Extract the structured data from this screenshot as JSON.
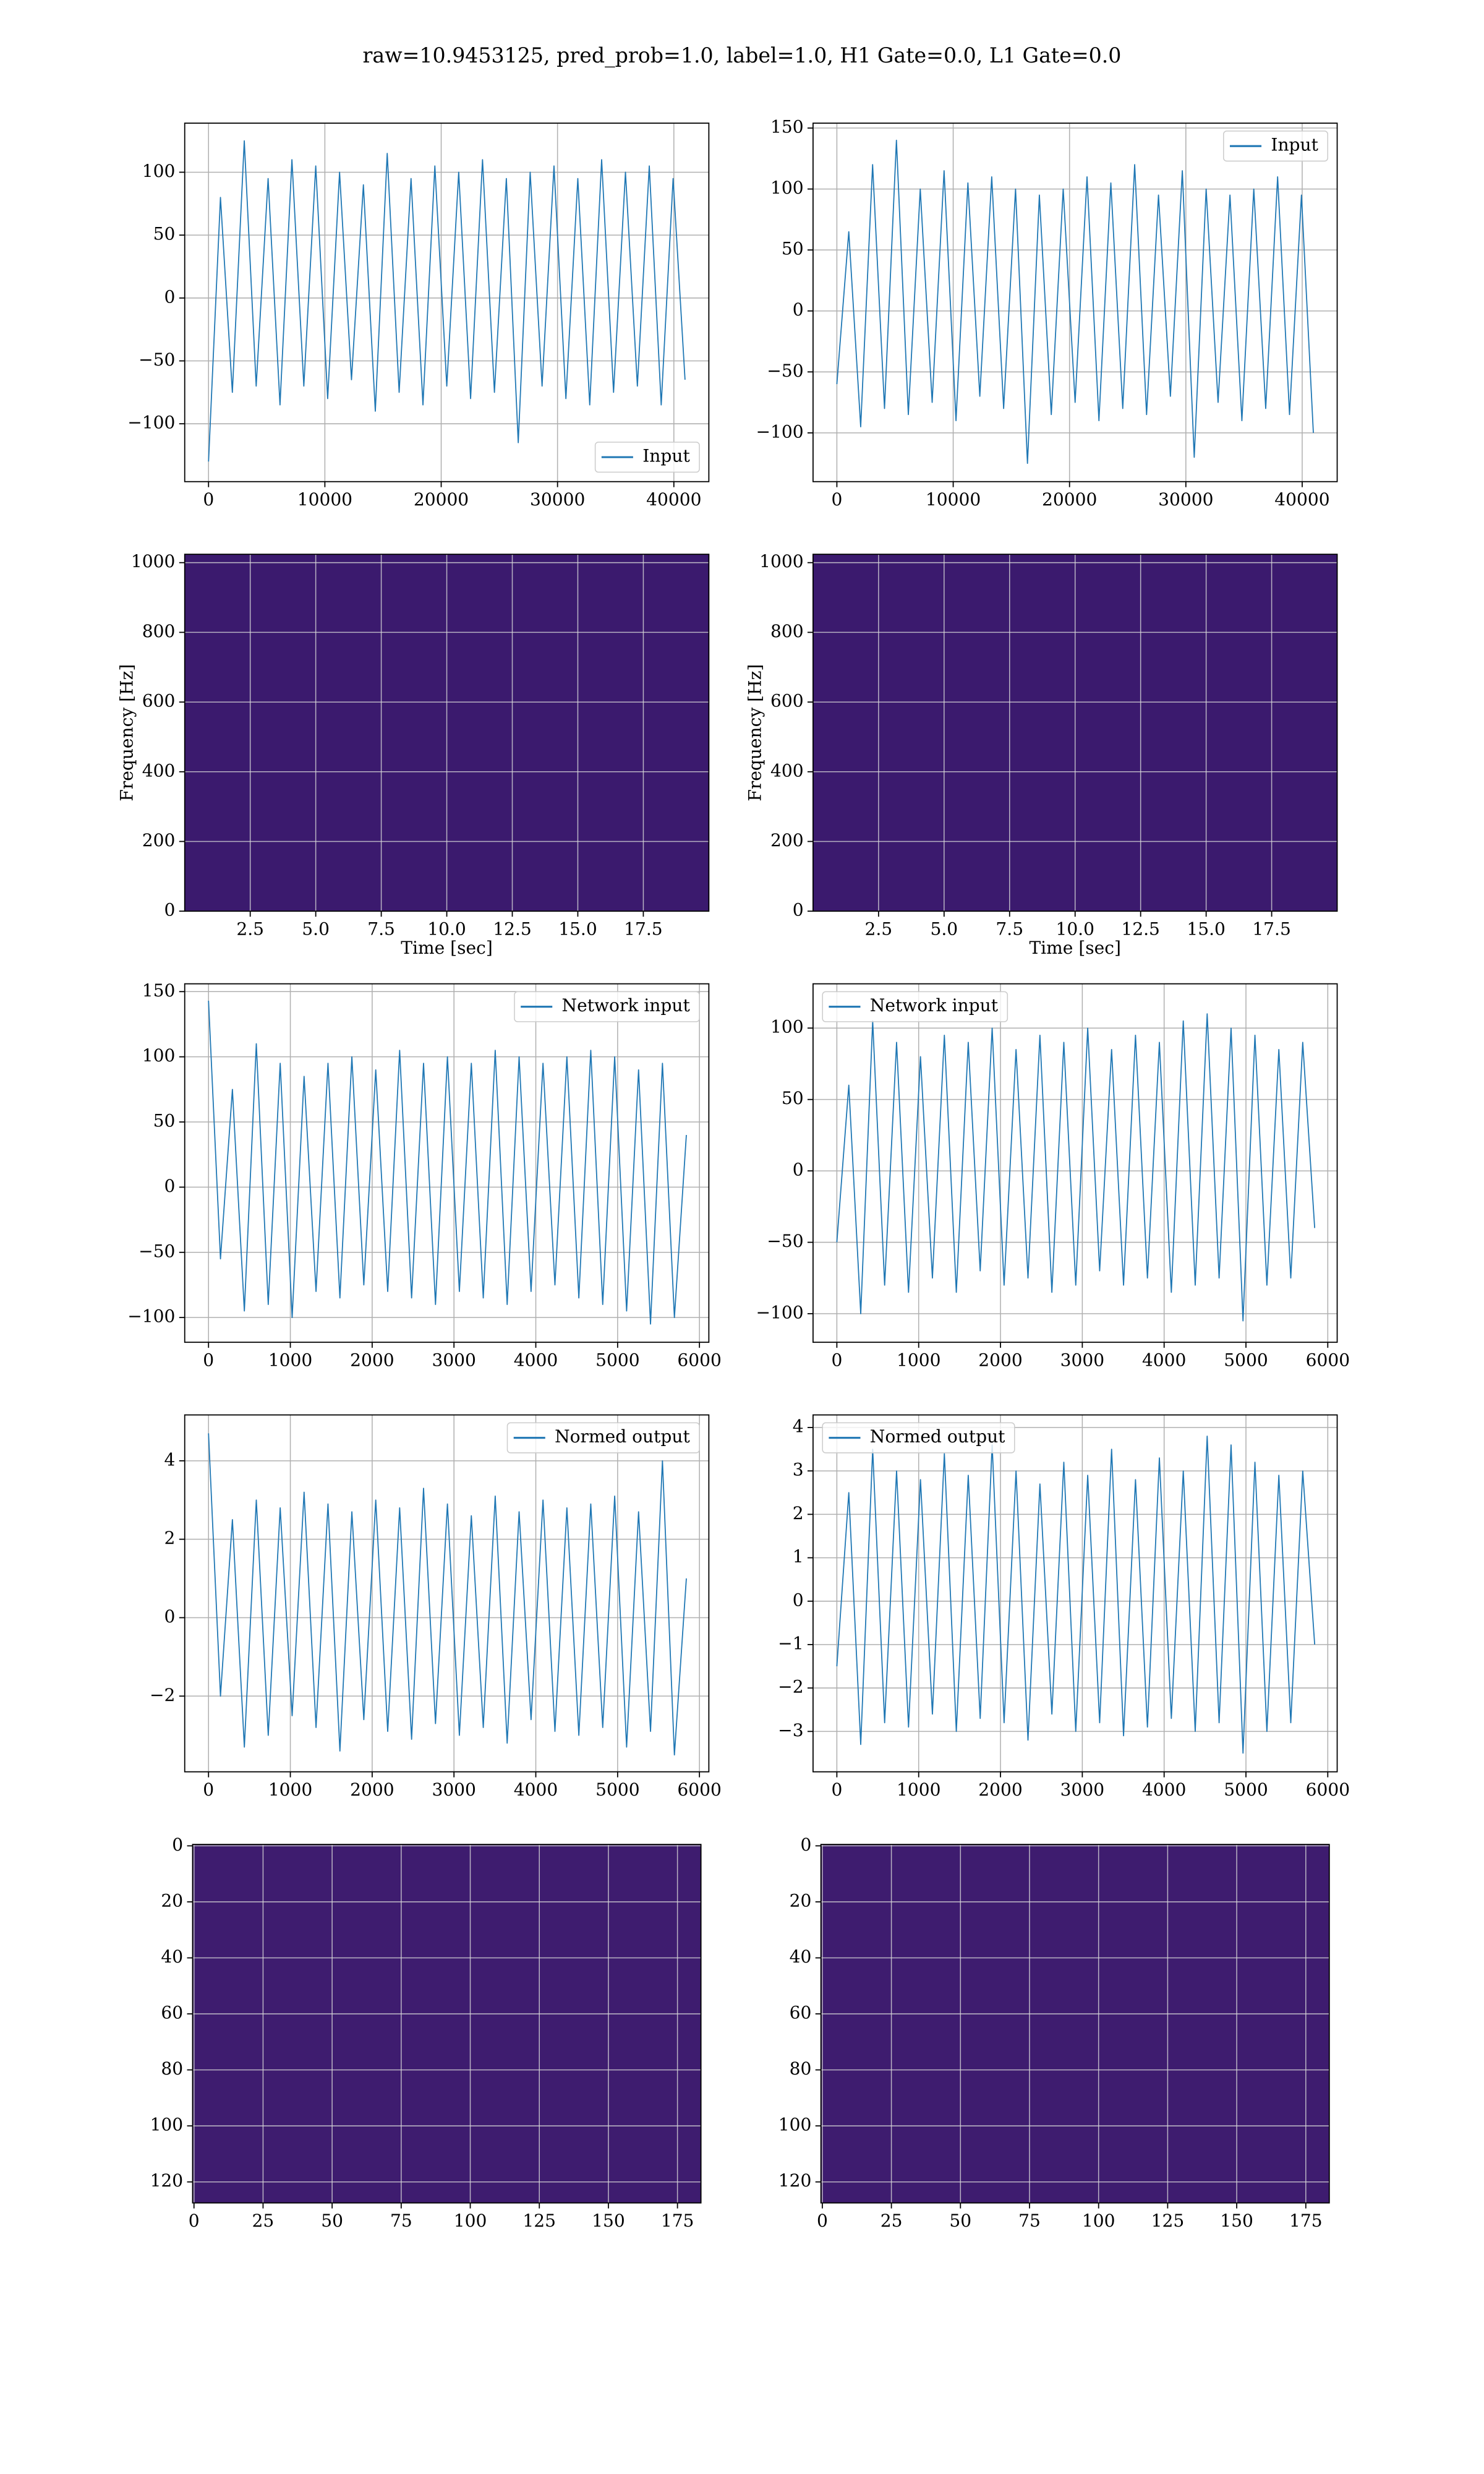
{
  "title": "raw=10.9453125, pred_prob=1.0, label=1.0, H1 Gate=0.0, L1 Gate=0.0",
  "chart_data": [
    {
      "type": "line",
      "legend": "lower right",
      "grid": true,
      "xlim": [
        -2048,
        43008
      ],
      "ylim": [
        -146,
        139
      ],
      "xticks": [
        0,
        10000,
        20000,
        30000,
        40000
      ],
      "yticks": [
        {
          "value": -100,
          "label": "−100"
        },
        {
          "value": -50,
          "label": "−50"
        },
        0,
        50,
        100
      ],
      "x": [
        0,
        1024,
        2048,
        3072,
        4096,
        5120,
        6144,
        7168,
        8192,
        9216,
        10240,
        11264,
        12288,
        13312,
        14336,
        15360,
        16384,
        17408,
        18432,
        19456,
        20480,
        21504,
        22528,
        23552,
        24576,
        25600,
        26624,
        27648,
        28672,
        29696,
        30720,
        31744,
        32768,
        33792,
        34816,
        35840,
        36864,
        37888,
        38912,
        39936,
        40960
      ],
      "series": [
        {
          "name": "Input",
          "color": "#1f77b4",
          "values": [
            -130,
            80,
            -75,
            125,
            -70,
            95,
            -85,
            110,
            -70,
            105,
            -80,
            100,
            -65,
            90,
            -90,
            115,
            -75,
            95,
            -85,
            105,
            -70,
            100,
            -80,
            110,
            -75,
            95,
            -115,
            100,
            -70,
            105,
            -80,
            95,
            -85,
            110,
            -75,
            100,
            -70,
            105,
            -85,
            95,
            -65
          ]
        }
      ]
    },
    {
      "type": "line",
      "legend": "upper right",
      "grid": true,
      "xlim": [
        -2048,
        43008
      ],
      "ylim": [
        -140,
        154
      ],
      "xticks": [
        0,
        10000,
        20000,
        30000,
        40000
      ],
      "yticks": [
        {
          "value": -100,
          "label": "−100"
        },
        {
          "value": -50,
          "label": "−50"
        },
        0,
        50,
        100,
        150
      ],
      "x": [
        0,
        1024,
        2048,
        3072,
        4096,
        5120,
        6144,
        7168,
        8192,
        9216,
        10240,
        11264,
        12288,
        13312,
        14336,
        15360,
        16384,
        17408,
        18432,
        19456,
        20480,
        21504,
        22528,
        23552,
        24576,
        25600,
        26624,
        27648,
        28672,
        29696,
        30720,
        31744,
        32768,
        33792,
        34816,
        35840,
        36864,
        37888,
        38912,
        39936,
        40960
      ],
      "series": [
        {
          "name": "Input",
          "color": "#1f77b4",
          "values": [
            -60,
            65,
            -95,
            120,
            -80,
            140,
            -85,
            100,
            -75,
            115,
            -90,
            105,
            -70,
            110,
            -80,
            100,
            -125,
            95,
            -85,
            100,
            -75,
            110,
            -90,
            105,
            -80,
            120,
            -85,
            95,
            -70,
            115,
            -120,
            100,
            -75,
            95,
            -90,
            100,
            -80,
            110,
            -85,
            95,
            -100
          ]
        }
      ]
    },
    {
      "type": "spectrogram",
      "color": "#3b1a6e",
      "grid": true,
      "xlabel": "Time [sec]",
      "ylabel": "Frequency [Hz]",
      "xlim": [
        0,
        20
      ],
      "ylim": [
        0,
        1024
      ],
      "xticks": [
        2.5,
        {
          "value": 5,
          "label": "5.0"
        },
        7.5,
        {
          "value": 10,
          "label": "10.0"
        },
        12.5,
        {
          "value": 15,
          "label": "15.0"
        },
        17.5
      ],
      "yticks": [
        0,
        200,
        400,
        600,
        800,
        1000
      ]
    },
    {
      "type": "spectrogram",
      "color": "#3b1a6e",
      "grid": true,
      "xlabel": "Time [sec]",
      "ylabel": "Frequency [Hz]",
      "xlim": [
        0,
        20
      ],
      "ylim": [
        0,
        1024
      ],
      "xticks": [
        2.5,
        {
          "value": 5,
          "label": "5.0"
        },
        7.5,
        {
          "value": 10,
          "label": "10.0"
        },
        12.5,
        {
          "value": 15,
          "label": "15.0"
        },
        17.5
      ],
      "yticks": [
        0,
        200,
        400,
        600,
        800,
        1000
      ]
    },
    {
      "type": "line",
      "legend": "upper right",
      "grid": true,
      "xlim": [
        -291,
        6115
      ],
      "ylim": [
        -119,
        156
      ],
      "xticks": [
        0,
        1000,
        2000,
        3000,
        4000,
        5000,
        6000
      ],
      "yticks": [
        {
          "value": -100,
          "label": "−100"
        },
        {
          "value": -50,
          "label": "−50"
        },
        0,
        50,
        100,
        150
      ],
      "x": [
        0,
        146,
        292,
        438,
        584,
        730,
        876,
        1022,
        1168,
        1314,
        1460,
        1606,
        1752,
        1898,
        2044,
        2190,
        2336,
        2482,
        2628,
        2774,
        2920,
        3066,
        3212,
        3358,
        3504,
        3650,
        3796,
        3942,
        4088,
        4234,
        4380,
        4526,
        4672,
        4818,
        4964,
        5110,
        5256,
        5402,
        5548,
        5694,
        5840
      ],
      "series": [
        {
          "name": "Network input",
          "color": "#1f77b4",
          "values": [
            143,
            -55,
            75,
            -95,
            110,
            -90,
            95,
            -100,
            85,
            -80,
            95,
            -85,
            100,
            -75,
            90,
            -80,
            105,
            -85,
            95,
            -90,
            100,
            -80,
            95,
            -85,
            105,
            -90,
            100,
            -80,
            95,
            -75,
            100,
            -85,
            105,
            -90,
            100,
            -95,
            90,
            -105,
            95,
            -100,
            40
          ]
        }
      ]
    },
    {
      "type": "line",
      "legend": "upper left",
      "grid": true,
      "xlim": [
        -291,
        6115
      ],
      "ylim": [
        -120,
        131
      ],
      "xticks": [
        0,
        1000,
        2000,
        3000,
        4000,
        5000,
        6000
      ],
      "yticks": [
        {
          "value": -100,
          "label": "−100"
        },
        {
          "value": -50,
          "label": "−50"
        },
        0,
        50,
        100
      ],
      "x": [
        0,
        146,
        292,
        438,
        584,
        730,
        876,
        1022,
        1168,
        1314,
        1460,
        1606,
        1752,
        1898,
        2044,
        2190,
        2336,
        2482,
        2628,
        2774,
        2920,
        3066,
        3212,
        3358,
        3504,
        3650,
        3796,
        3942,
        4088,
        4234,
        4380,
        4526,
        4672,
        4818,
        4964,
        5110,
        5256,
        5402,
        5548,
        5694,
        5840
      ],
      "series": [
        {
          "name": "Network input",
          "color": "#1f77b4",
          "values": [
            -50,
            60,
            -100,
            105,
            -80,
            90,
            -85,
            80,
            -75,
            95,
            -85,
            90,
            -70,
            100,
            -80,
            85,
            -75,
            95,
            -85,
            90,
            -80,
            100,
            -70,
            85,
            -80,
            95,
            -75,
            90,
            -85,
            105,
            -80,
            110,
            -75,
            100,
            -105,
            95,
            -80,
            85,
            -75,
            90,
            -40
          ]
        }
      ]
    },
    {
      "type": "line",
      "legend": "upper right",
      "grid": true,
      "xlim": [
        -291,
        6115
      ],
      "ylim": [
        -3.93,
        5.17
      ],
      "xticks": [
        0,
        1000,
        2000,
        3000,
        4000,
        5000,
        6000
      ],
      "yticks": [
        {
          "value": -2,
          "label": "−2"
        },
        0,
        2,
        4
      ],
      "x": [
        0,
        146,
        292,
        438,
        584,
        730,
        876,
        1022,
        1168,
        1314,
        1460,
        1606,
        1752,
        1898,
        2044,
        2190,
        2336,
        2482,
        2628,
        2774,
        2920,
        3066,
        3212,
        3358,
        3504,
        3650,
        3796,
        3942,
        4088,
        4234,
        4380,
        4526,
        4672,
        4818,
        4964,
        5110,
        5256,
        5402,
        5548,
        5694,
        5840
      ],
      "series": [
        {
          "name": "Normed output",
          "color": "#1f77b4",
          "values": [
            4.7,
            -2,
            2.5,
            -3.3,
            3,
            -3,
            2.8,
            -2.5,
            3.2,
            -2.8,
            2.9,
            -3.4,
            2.7,
            -2.6,
            3,
            -2.9,
            2.8,
            -3.1,
            3.3,
            -2.7,
            2.9,
            -3,
            2.6,
            -2.8,
            3.1,
            -3.2,
            2.7,
            -2.6,
            3,
            -2.9,
            2.8,
            -3,
            2.9,
            -2.8,
            3.1,
            -3.3,
            2.7,
            -2.9,
            4,
            -3.5,
            1
          ]
        }
      ]
    },
    {
      "type": "line",
      "legend": "upper left",
      "grid": true,
      "xlim": [
        -291,
        6115
      ],
      "ylim": [
        -3.93,
        4.29
      ],
      "xticks": [
        0,
        1000,
        2000,
        3000,
        4000,
        5000,
        6000
      ],
      "yticks": [
        {
          "value": -3,
          "label": "−3"
        },
        {
          "value": -2,
          "label": "−2"
        },
        {
          "value": -1,
          "label": "−1"
        },
        0,
        1,
        2,
        3,
        4
      ],
      "x": [
        0,
        146,
        292,
        438,
        584,
        730,
        876,
        1022,
        1168,
        1314,
        1460,
        1606,
        1752,
        1898,
        2044,
        2190,
        2336,
        2482,
        2628,
        2774,
        2920,
        3066,
        3212,
        3358,
        3504,
        3650,
        3796,
        3942,
        4088,
        4234,
        4380,
        4526,
        4672,
        4818,
        4964,
        5110,
        5256,
        5402,
        5548,
        5694,
        5840
      ],
      "series": [
        {
          "name": "Normed output",
          "color": "#1f77b4",
          "values": [
            -1.5,
            2.5,
            -3.3,
            3.5,
            -2.8,
            3,
            -2.9,
            2.8,
            -2.6,
            3.4,
            -3,
            2.9,
            -2.7,
            3.6,
            -2.8,
            3,
            -3.2,
            2.7,
            -2.6,
            3.2,
            -3,
            2.9,
            -2.8,
            3.5,
            -3.1,
            2.8,
            -2.9,
            3.3,
            -2.7,
            3,
            -3,
            3.8,
            -2.8,
            3.6,
            -3.5,
            3.2,
            -3,
            2.9,
            -2.8,
            3,
            -1
          ]
        }
      ]
    },
    {
      "type": "heatmap",
      "color": "#3e1c6f",
      "grid": true,
      "xlim": [
        -0.5,
        183.5
      ],
      "ylim": [
        127.5,
        -0.5
      ],
      "xticks": [
        0,
        25,
        50,
        75,
        100,
        125,
        150,
        175
      ],
      "yticks": [
        0,
        20,
        40,
        60,
        80,
        100,
        120
      ]
    },
    {
      "type": "heatmap",
      "color": "#3e1c6f",
      "grid": true,
      "xlim": [
        -0.5,
        183.5
      ],
      "ylim": [
        127.5,
        -0.5
      ],
      "xticks": [
        0,
        25,
        50,
        75,
        100,
        125,
        150,
        175
      ],
      "yticks": [
        0,
        20,
        40,
        60,
        80,
        100,
        120
      ]
    }
  ]
}
